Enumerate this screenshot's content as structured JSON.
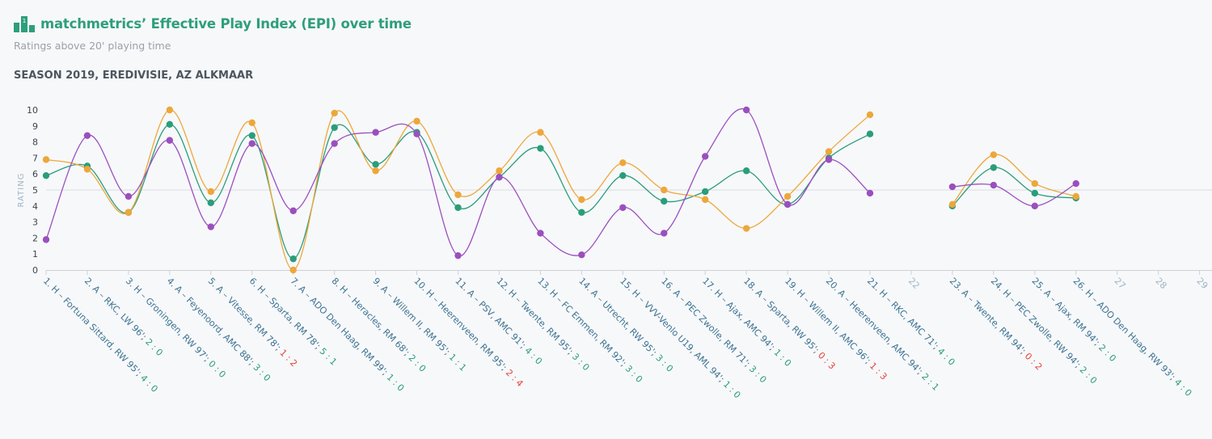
{
  "header": {
    "title": "matchmetrics’ Effective Play Index (EPI) over time",
    "subtitle": "Ratings above 20' playing time",
    "section": "SEASON 2019, EREDIVISIE, AZ ALKMAAR",
    "logo_icon": "podium-icon"
  },
  "colors": {
    "green": "#2a9d7a",
    "orange": "#eda73a",
    "purple": "#9b4fbe",
    "win": "#2a9d7a",
    "loss": "#e5413b",
    "empty": "#9fb5c4",
    "axis": "#3c454e"
  },
  "chart_data": {
    "type": "line",
    "title": "matchmetrics’ Effective Play Index (EPI) over time",
    "subtitle": "Ratings above 20' playing time",
    "ylabel": "RATING",
    "ylim": [
      0,
      10
    ],
    "yticks": [
      0,
      1,
      2,
      3,
      4,
      5,
      6,
      7,
      8,
      9,
      10
    ],
    "reference_line": 5,
    "x": [
      1,
      2,
      3,
      4,
      5,
      6,
      7,
      8,
      9,
      10,
      11,
      12,
      13,
      14,
      15,
      16,
      17,
      18,
      19,
      20,
      21,
      22,
      23,
      24,
      25,
      26,
      27,
      28,
      29
    ],
    "categories": [
      {
        "label": "1. H – Fortuna Sittard, RW 95'; ",
        "score": "4 : 0",
        "result": "win"
      },
      {
        "label": "2. A – RKC, LW 96'; ",
        "score": "2 : 0",
        "result": "win"
      },
      {
        "label": "3. H – Groningen, RW 97'; ",
        "score": "0 : 0",
        "result": "draw"
      },
      {
        "label": "4. A – Feyenoord, AMC 88'; ",
        "score": "3 : 0",
        "result": "win"
      },
      {
        "label": "5. A – Vitesse, RM 78'; ",
        "score": "1 : 2",
        "result": "loss"
      },
      {
        "label": "6. H – Sparta, RM 78'; ",
        "score": "5 : 1",
        "result": "win"
      },
      {
        "label": "7. A – ADO Den Haag, RM 99'; ",
        "score": "1 : 0",
        "result": "win"
      },
      {
        "label": "8. H – Heracles, RM 68'; ",
        "score": "2 : 0",
        "result": "win"
      },
      {
        "label": "9. A – Willem II, RM 95'; ",
        "score": "1 : 1",
        "result": "draw"
      },
      {
        "label": "10. H – Heerenveen, RM 95'; ",
        "score": "2 : 4",
        "result": "loss"
      },
      {
        "label": "11. A – PSV, AMC 91'; ",
        "score": "4 : 0",
        "result": "win"
      },
      {
        "label": "12. H – Twente, RM 95'; ",
        "score": "3 : 0",
        "result": "win"
      },
      {
        "label": "13. H – FC Emmen, RM 92'; ",
        "score": "3 : 0",
        "result": "win"
      },
      {
        "label": "14. A – Utrecht, RW 95'; ",
        "score": "3 : 0",
        "result": "win"
      },
      {
        "label": "15. H – VVV-Venlo U19, AML 94'; ",
        "score": "1 : 0",
        "result": "win"
      },
      {
        "label": "16. A – PEC Zwolle, RM 71'; ",
        "score": "3 : 0",
        "result": "win"
      },
      {
        "label": "17. H – Ajax, AMC 94'; ",
        "score": "1 : 0",
        "result": "win"
      },
      {
        "label": "18. A – Sparta, RW 95'; ",
        "score": "0 : 3",
        "result": "loss"
      },
      {
        "label": "19. H – Willem II, AMC 96'; ",
        "score": "1 : 3",
        "result": "loss"
      },
      {
        "label": "20. A – Heerenveen, AMC 94'; ",
        "score": "2 : 1",
        "result": "win"
      },
      {
        "label": "21. H – RKC, AMC 71'; ",
        "score": "4 : 0",
        "result": "win"
      },
      {
        "label": "22",
        "score": "",
        "result": "none"
      },
      {
        "label": "23. A – Twente, RM 94'; ",
        "score": "0 : 2",
        "result": "loss"
      },
      {
        "label": "24. H – PEC Zwolle, RW 94'; ",
        "score": "2 : 0",
        "result": "win"
      },
      {
        "label": "25. A – Ajax, RM 94'; ",
        "score": "2 : 0",
        "result": "win"
      },
      {
        "label": "26. H – ADO Den Haag, RW 93'; ",
        "score": "4 : 0",
        "result": "win"
      },
      {
        "label": "27",
        "score": "",
        "result": "none"
      },
      {
        "label": "28",
        "score": "",
        "result": "none"
      },
      {
        "label": "29",
        "score": "",
        "result": "none"
      }
    ],
    "series": [
      {
        "color": "#2a9d7a",
        "values": [
          5.9,
          6.5,
          3.6,
          9.1,
          4.2,
          8.4,
          0.7,
          8.9,
          6.6,
          8.6,
          3.9,
          5.8,
          7.6,
          3.6,
          5.9,
          4.3,
          4.9,
          6.2,
          4.1,
          7.0,
          8.5,
          null,
          4.0,
          6.4,
          4.8,
          4.5,
          null,
          null,
          null
        ]
      },
      {
        "color": "#eda73a",
        "values": [
          6.9,
          6.3,
          3.6,
          10.0,
          4.9,
          9.2,
          0.0,
          9.8,
          6.2,
          9.3,
          4.7,
          6.2,
          8.6,
          4.4,
          6.7,
          5.0,
          4.4,
          2.6,
          4.6,
          7.4,
          9.7,
          null,
          4.1,
          7.2,
          5.4,
          4.6,
          null,
          null,
          null
        ]
      },
      {
        "color": "#9b4fbe",
        "values": [
          1.9,
          8.4,
          4.6,
          8.1,
          2.7,
          7.9,
          3.7,
          7.9,
          8.6,
          8.5,
          0.9,
          5.8,
          2.3,
          0.95,
          3.9,
          2.3,
          7.1,
          10.0,
          4.1,
          6.9,
          4.8,
          null,
          5.2,
          5.3,
          4.0,
          5.4,
          null,
          null,
          null
        ]
      }
    ]
  }
}
